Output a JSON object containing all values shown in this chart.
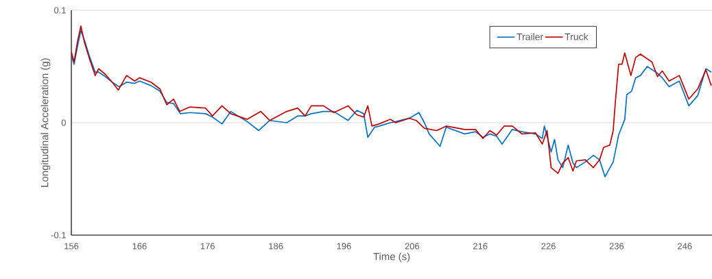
{
  "chart_data": {
    "type": "line",
    "xlabel": "Time (s)",
    "ylabel": "Longitudinal Acceleration (g)",
    "xlim": [
      156,
      250
    ],
    "ylim": [
      -0.1,
      0.1
    ],
    "xticks": [
      156,
      166,
      176,
      186,
      196,
      206,
      216,
      226,
      236,
      246
    ],
    "yticks": [
      -0.1,
      0,
      0.1
    ],
    "grid": "y",
    "legend": "top right",
    "series": [
      {
        "name": "Trailer",
        "color": "#0070c0",
        "x": [
          156,
          156.4,
          156.9,
          157.4,
          158,
          158.6,
          159.5,
          160,
          161,
          162,
          163,
          164.1,
          165.3,
          166,
          167.7,
          169,
          170,
          171,
          172,
          173.4,
          175.7,
          176.7,
          178.1,
          179.4,
          181.8,
          183.5,
          185.1,
          187.6,
          189.2,
          190.3,
          191.2,
          193,
          194.5,
          196.6,
          197.9,
          198.9,
          199.5,
          200.5,
          201.2,
          202.8,
          203.6,
          205.6,
          207,
          207.8,
          208.5,
          210.1,
          211,
          213.7,
          215.3,
          216.4,
          217.4,
          218.4,
          219.2,
          220.7,
          222.1,
          224.1,
          225.1,
          225.4,
          226.4,
          226.9,
          227.4,
          228.1,
          228.9,
          229.6,
          230.1,
          231.4,
          232.6,
          233.5,
          234.3,
          235.5,
          236.3,
          237.2,
          237.5,
          238.2,
          238.8,
          239.5,
          240.5,
          242,
          242.7,
          243.7,
          245.2,
          246.6,
          247.9,
          249.1,
          249.9
        ],
        "values": [
          0.06,
          0.052,
          0.068,
          0.082,
          0.072,
          0.06,
          0.045,
          0.045,
          0.041,
          0.036,
          0.032,
          0.036,
          0.035,
          0.037,
          0.033,
          0.028,
          0.018,
          0.017,
          0.008,
          0.009,
          0.008,
          0.005,
          -0.001,
          0.01,
          0.001,
          -0.007,
          0.002,
          0.0,
          0.006,
          0.006,
          0.008,
          0.01,
          0.01,
          0.002,
          0.011,
          0.008,
          -0.013,
          -0.004,
          -0.003,
          0.0,
          0.001,
          0.004,
          0.009,
          0.0,
          -0.01,
          -0.021,
          -0.004,
          -0.01,
          -0.008,
          -0.013,
          -0.01,
          -0.012,
          -0.019,
          -0.006,
          -0.008,
          -0.01,
          -0.014,
          -0.003,
          -0.026,
          -0.015,
          -0.033,
          -0.04,
          -0.02,
          -0.036,
          -0.04,
          -0.035,
          -0.029,
          -0.033,
          -0.048,
          -0.035,
          -0.011,
          0.003,
          0.025,
          0.028,
          0.04,
          0.042,
          0.05,
          0.044,
          0.04,
          0.032,
          0.037,
          0.015,
          0.024,
          0.048,
          0.045
        ]
      },
      {
        "name": "Truck",
        "color": "#c00000",
        "x": [
          156,
          156.4,
          156.9,
          157.4,
          157.9,
          158.6,
          159.5,
          160,
          161,
          162,
          162.9,
          164.1,
          165.3,
          166,
          167.7,
          169,
          170,
          171,
          171.9,
          173.4,
          175.7,
          176.7,
          178.1,
          179.4,
          181.8,
          183.8,
          185.1,
          187.6,
          189.2,
          190.3,
          191.2,
          193,
          194.5,
          196.6,
          197.9,
          198.9,
          199.5,
          200.1,
          201.2,
          202.8,
          203.6,
          205.6,
          206.6,
          207.8,
          209.6,
          211,
          213.7,
          215.3,
          216.4,
          217.4,
          218.4,
          219.5,
          220.7,
          222.1,
          224.1,
          225.1,
          225.8,
          226.4,
          227.4,
          228.1,
          228.9,
          229.6,
          230.1,
          231.4,
          232.6,
          233.5,
          234.1,
          235,
          235.5,
          235.8,
          236.3,
          236.8,
          237.2,
          238.1,
          238.8,
          239.5,
          241.2,
          242,
          242.7,
          243.7,
          245.2,
          246.6,
          247.9,
          249.1,
          249.9
        ],
        "values": [
          0.063,
          0.054,
          0.072,
          0.086,
          0.072,
          0.058,
          0.042,
          0.048,
          0.043,
          0.036,
          0.029,
          0.042,
          0.037,
          0.04,
          0.036,
          0.03,
          0.016,
          0.021,
          0.01,
          0.014,
          0.013,
          0.006,
          0.015,
          0.008,
          0.003,
          0.01,
          0.002,
          0.01,
          0.013,
          0.006,
          0.015,
          0.015,
          0.009,
          0.015,
          0.007,
          0.005,
          0.015,
          -0.003,
          -0.001,
          0.003,
          0.0,
          0.004,
          0.002,
          -0.005,
          -0.007,
          -0.003,
          -0.006,
          -0.006,
          -0.014,
          -0.007,
          -0.011,
          -0.003,
          -0.003,
          -0.01,
          -0.009,
          -0.019,
          -0.007,
          -0.04,
          -0.045,
          -0.036,
          -0.031,
          -0.043,
          -0.034,
          -0.033,
          -0.04,
          -0.033,
          -0.022,
          -0.02,
          -0.007,
          0.017,
          0.052,
          0.052,
          0.062,
          0.042,
          0.058,
          0.061,
          0.054,
          0.041,
          0.046,
          0.037,
          0.042,
          0.021,
          0.03,
          0.047,
          0.033
        ]
      }
    ]
  }
}
